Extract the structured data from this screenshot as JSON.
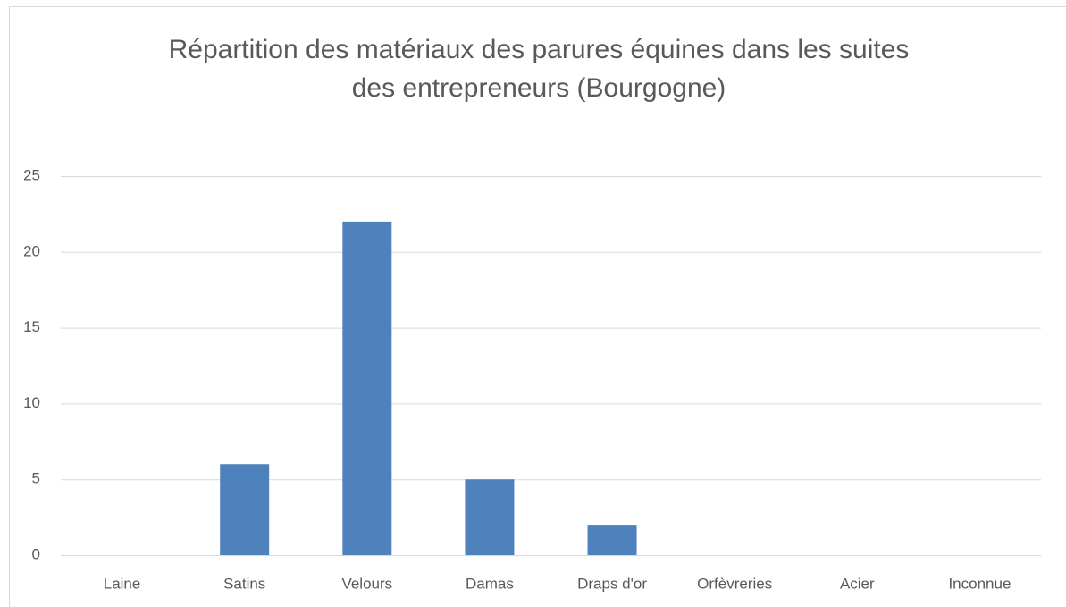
{
  "chart_data": {
    "type": "bar",
    "title": [
      "Répartition des matériaux des parures équines dans les suites",
      "des entrepreneurs (Bourgogne)"
    ],
    "categories": [
      "Laine",
      "Satins",
      "Velours",
      "Damas",
      "Draps d'or",
      "Orfèvreries",
      "Acier",
      "Inconnue"
    ],
    "values": [
      0,
      6,
      22,
      5,
      2,
      0,
      0,
      0
    ],
    "color": "#4f81bd",
    "ylim": [
      0,
      25
    ],
    "yticks": [
      0,
      5,
      10,
      15,
      20,
      25
    ],
    "grid": true
  }
}
